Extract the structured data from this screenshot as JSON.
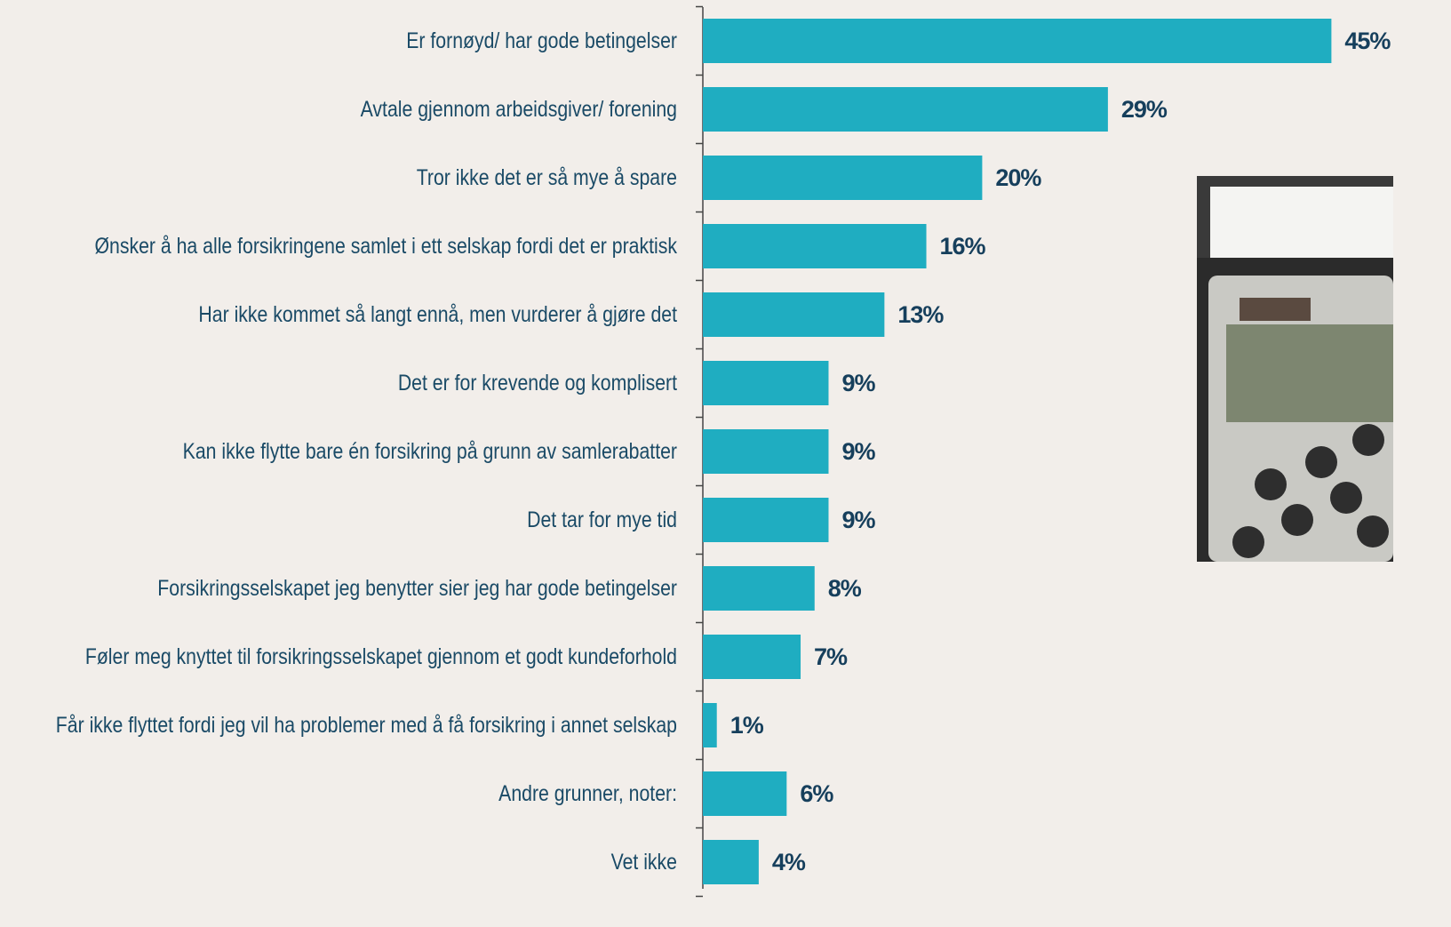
{
  "chart_data": {
    "type": "bar",
    "orientation": "horizontal",
    "categories": [
      "Er fornøyd/ har gode betingelser",
      "Avtale gjennom arbeidsgiver/ forening",
      "Tror ikke det er så mye å spare",
      "Ønsker å ha alle forsikringene samlet i ett selskap fordi det er praktisk",
      "Har ikke kommet så langt ennå, men vurderer å gjøre det",
      "Det er for krevende og komplisert",
      "Kan ikke flytte bare én forsikring på grunn av samlerabatter",
      "Det tar for mye tid",
      "Forsikringsselskapet jeg benytter sier jeg har gode betingelser",
      "Føler meg knyttet til forsikringsselskapet gjennom et godt kundeforhold",
      "Får ikke flyttet fordi jeg vil ha problemer med å få forsikring i annet selskap",
      "Andre grunner, noter:",
      "Vet ikke"
    ],
    "values": [
      45,
      29,
      20,
      16,
      13,
      9,
      9,
      9,
      8,
      7,
      1,
      6,
      4
    ],
    "value_labels": [
      "45%",
      "29%",
      "20%",
      "16%",
      "13%",
      "9%",
      "9%",
      "9%",
      "8%",
      "7%",
      "1%",
      "6%",
      "4%"
    ],
    "color": "#1fadc1",
    "xlim": [
      0,
      50
    ]
  }
}
